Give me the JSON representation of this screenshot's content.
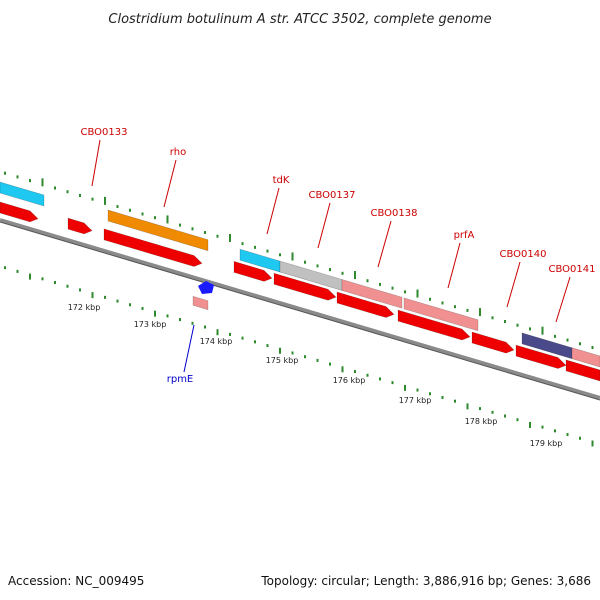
{
  "header": {
    "title": "Clostridium botulinum A str. ATCC 3502, complete genome"
  },
  "footer": {
    "accession": "Accession: NC_009495",
    "summary": "Topology: circular; Length: 3,886,916 bp; Genes: 3,686"
  },
  "colors": {
    "backbone": "#8a8a8a",
    "tick": "#2d8a2d",
    "gene_label": "#cc0000",
    "rna_label": "#0000cc",
    "cyan": "#1ec8f0",
    "orange": "#f08a00",
    "gray": "#c0c0c0",
    "pink": "#f09090",
    "purple": "#4a4a8a",
    "red": "#ee0000",
    "blue": "#1a1aff"
  },
  "scale_labels": [
    "172 kbp",
    "173 kbp",
    "174 kbp",
    "175 kbp",
    "176 kbp",
    "177 kbp",
    "178 kbp",
    "179 kbp"
  ],
  "gene_labels": [
    {
      "text": "CBO0133",
      "color_key": "gene_label"
    },
    {
      "text": "rho",
      "color_key": "gene_label"
    },
    {
      "text": "tdK",
      "color_key": "gene_label"
    },
    {
      "text": "CBO0137",
      "color_key": "gene_label"
    },
    {
      "text": "CBO0138",
      "color_key": "gene_label"
    },
    {
      "text": "prfA",
      "color_key": "gene_label"
    },
    {
      "text": "CBO0140",
      "color_key": "gene_label"
    },
    {
      "text": "CBO0141",
      "color_key": "gene_label"
    },
    {
      "text": "rpmE",
      "color_key": "rna_label"
    }
  ]
}
